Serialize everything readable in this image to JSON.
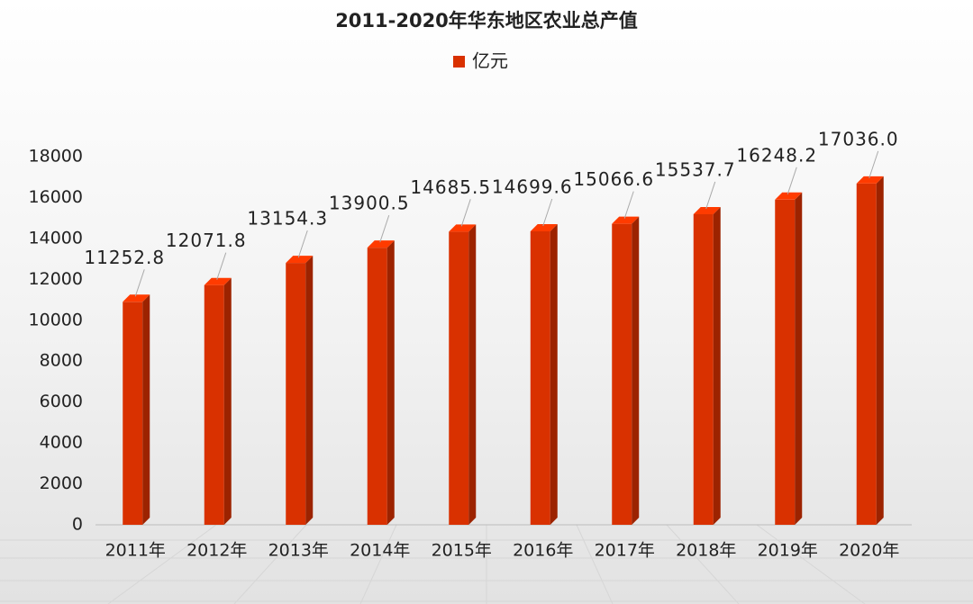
{
  "chart_data": {
    "type": "bar3d",
    "title": "2011-2020年华东地区农业总产值",
    "categories": [
      "2011年",
      "2012年",
      "2013年",
      "2014年",
      "2015年",
      "2016年",
      "2017年",
      "2018年",
      "2019年",
      "2020年"
    ],
    "series": [
      {
        "name": "亿元",
        "color": "#d93100",
        "values": [
          11252.8,
          12071.8,
          13154.3,
          13900.5,
          14685.5,
          14699.6,
          15066.6,
          15537.7,
          16248.2,
          17036.0
        ],
        "value_labels": [
          "11252.8",
          "12071.8",
          "13154.3",
          "13900.5",
          "14685.5",
          "14699.6",
          "15066.6",
          "15537.7",
          "16248.2",
          "17036.0"
        ]
      }
    ],
    "ylim": [
      0,
      18000
    ],
    "yticks": [
      0,
      2000,
      4000,
      6000,
      8000,
      10000,
      12000,
      14000,
      16000,
      18000
    ],
    "legend": "top",
    "grid": false
  }
}
